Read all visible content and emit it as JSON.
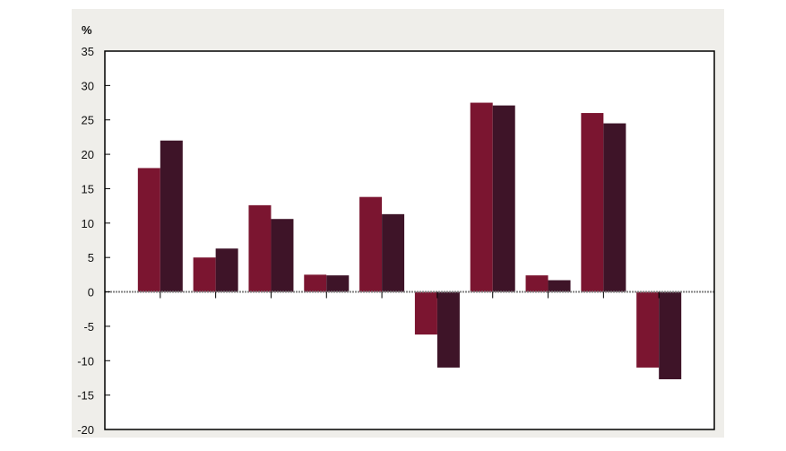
{
  "colors": {
    "panel_background": "#efeeea",
    "plot_background": "#ffffff",
    "axis": "#000000",
    "zero_line": "#808080"
  },
  "chart_data": {
    "type": "bar",
    "unit_label": "%",
    "ylim": [
      -20,
      35
    ],
    "yticks": [
      35,
      30,
      25,
      20,
      15,
      10,
      5,
      0,
      -5,
      -10,
      -15,
      -20
    ],
    "grid": false,
    "legend": "none",
    "category_count": 10,
    "series": [
      {
        "color": "#7b1530",
        "values": [
          18,
          5,
          12.6,
          2.5,
          13.8,
          -6.2,
          27.5,
          2.4,
          26,
          -11
        ]
      },
      {
        "color": "#3e1428",
        "values": [
          22,
          6.3,
          10.6,
          2.4,
          11.3,
          -11,
          27.1,
          1.7,
          24.5,
          -12.7
        ]
      }
    ]
  }
}
